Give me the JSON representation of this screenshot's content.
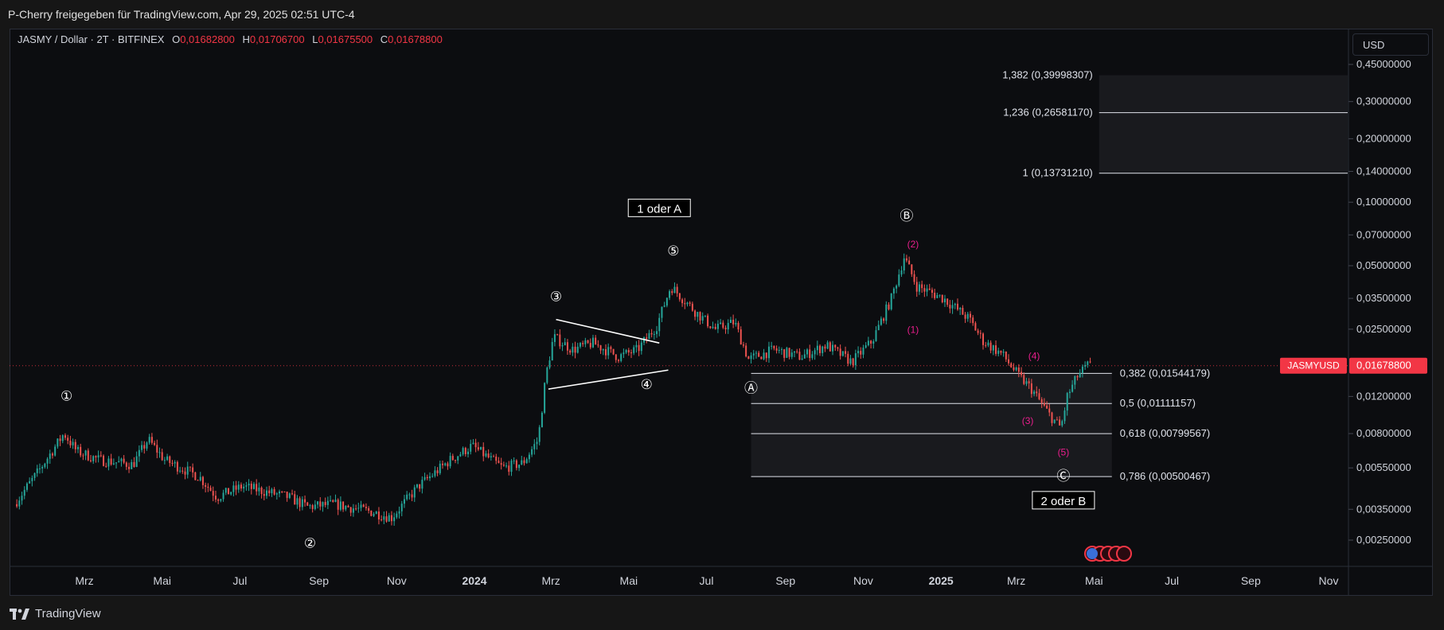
{
  "header": {
    "title": "P-Cherry freigegeben für TradingView.com, Apr 29, 2025 02:51 UTC-4"
  },
  "legend": {
    "symbol": "JASMY / Dollar · 2T · BITFINEX",
    "o_label": "O",
    "o": "0,01682800",
    "h_label": "H",
    "h": "0,01706700",
    "l_label": "L",
    "l": "0,01675500",
    "c_label": "C",
    "c": "0,01678800"
  },
  "currency_button": "USD",
  "footer": {
    "brand": "TradingView"
  },
  "colors": {
    "up": "#26a69a",
    "down": "#ef5350",
    "price_tag": "#f23645",
    "wave_sub": "#e91e8c"
  },
  "chart_data": {
    "type": "candlestick",
    "symbol": "JASMYUSD",
    "exchange": "BITFINEX",
    "timeframe": "2T",
    "y_scale": "log",
    "ylim": [
      0.0018,
      0.6
    ],
    "y_ticks": [
      {
        "value": 0.45,
        "label": "0,45000000"
      },
      {
        "value": 0.3,
        "label": "0,30000000"
      },
      {
        "value": 0.2,
        "label": "0,20000000"
      },
      {
        "value": 0.14,
        "label": "0,14000000"
      },
      {
        "value": 0.1,
        "label": "0,10000000"
      },
      {
        "value": 0.07,
        "label": "0,07000000"
      },
      {
        "value": 0.05,
        "label": "0,05000000"
      },
      {
        "value": 0.035,
        "label": "0,03500000"
      },
      {
        "value": 0.025,
        "label": "0,02500000"
      },
      {
        "value": 0.012,
        "label": "0,01200000"
      },
      {
        "value": 0.008,
        "label": "0,00800000"
      },
      {
        "value": 0.0055,
        "label": "0,00550000"
      },
      {
        "value": 0.0035,
        "label": "0,00350000"
      },
      {
        "value": 0.0025,
        "label": "0,00250000"
      }
    ],
    "x_ticks": [
      {
        "date": "2023-03-01",
        "label": "Mrz",
        "bold": false
      },
      {
        "date": "2023-05-01",
        "label": "Mai",
        "bold": false
      },
      {
        "date": "2023-07-01",
        "label": "Jul",
        "bold": false
      },
      {
        "date": "2023-09-01",
        "label": "Sep",
        "bold": false
      },
      {
        "date": "2023-11-01",
        "label": "Nov",
        "bold": false
      },
      {
        "date": "2024-01-01",
        "label": "2024",
        "bold": true
      },
      {
        "date": "2024-03-01",
        "label": "Mrz",
        "bold": false
      },
      {
        "date": "2024-05-01",
        "label": "Mai",
        "bold": false
      },
      {
        "date": "2024-07-01",
        "label": "Jul",
        "bold": false
      },
      {
        "date": "2024-09-01",
        "label": "Sep",
        "bold": false
      },
      {
        "date": "2024-11-01",
        "label": "Nov",
        "bold": false
      },
      {
        "date": "2025-01-01",
        "label": "2025",
        "bold": true
      },
      {
        "date": "2025-03-01",
        "label": "Mrz",
        "bold": false
      },
      {
        "date": "2025-05-01",
        "label": "Mai",
        "bold": false
      },
      {
        "date": "2025-07-01",
        "label": "Jul",
        "bold": false
      },
      {
        "date": "2025-09-01",
        "label": "Sep",
        "bold": false
      },
      {
        "date": "2025-11-01",
        "label": "Nov",
        "bold": false
      }
    ],
    "price_path": [
      [
        "2023-01-07",
        0.0037
      ],
      [
        "2023-01-25",
        0.0052
      ],
      [
        "2023-02-15",
        0.008
      ],
      [
        "2023-02-25",
        0.0066
      ],
      [
        "2023-03-15",
        0.006
      ],
      [
        "2023-04-10",
        0.0057
      ],
      [
        "2023-04-22",
        0.0075
      ],
      [
        "2023-05-05",
        0.006
      ],
      [
        "2023-06-01",
        0.005
      ],
      [
        "2023-06-15",
        0.004
      ],
      [
        "2023-07-05",
        0.0045
      ],
      [
        "2023-08-10",
        0.004
      ],
      [
        "2023-08-25",
        0.0036
      ],
      [
        "2023-09-15",
        0.0037
      ],
      [
        "2023-10-15",
        0.0034
      ],
      [
        "2023-10-30",
        0.0032
      ],
      [
        "2023-11-20",
        0.0045
      ],
      [
        "2023-12-15",
        0.006
      ],
      [
        "2024-01-01",
        0.007
      ],
      [
        "2024-01-25",
        0.0055
      ],
      [
        "2024-02-10",
        0.0058
      ],
      [
        "2024-02-22",
        0.0075
      ],
      [
        "2024-02-28",
        0.015
      ],
      [
        "2024-03-05",
        0.023
      ],
      [
        "2024-03-20",
        0.02
      ],
      [
        "2024-04-05",
        0.0215
      ],
      [
        "2024-04-25",
        0.0185
      ],
      [
        "2024-05-10",
        0.02
      ],
      [
        "2024-05-25",
        0.026
      ],
      [
        "2024-06-05",
        0.04
      ],
      [
        "2024-06-25",
        0.03
      ],
      [
        "2024-07-10",
        0.025
      ],
      [
        "2024-07-25",
        0.027
      ],
      [
        "2024-08-05",
        0.018
      ],
      [
        "2024-08-25",
        0.02
      ],
      [
        "2024-09-15",
        0.0185
      ],
      [
        "2024-10-05",
        0.021
      ],
      [
        "2024-10-25",
        0.0175
      ],
      [
        "2024-11-10",
        0.022
      ],
      [
        "2024-11-25",
        0.035
      ],
      [
        "2024-12-05",
        0.055
      ],
      [
        "2024-12-15",
        0.04
      ],
      [
        "2025-01-05",
        0.035
      ],
      [
        "2025-01-25",
        0.028
      ],
      [
        "2025-02-05",
        0.022
      ],
      [
        "2025-02-20",
        0.019
      ],
      [
        "2025-03-05",
        0.015
      ],
      [
        "2025-03-15",
        0.013
      ],
      [
        "2025-03-28",
        0.01
      ],
      [
        "2025-04-07",
        0.0085
      ],
      [
        "2025-04-12",
        0.012
      ],
      [
        "2025-04-20",
        0.015
      ],
      [
        "2025-04-28",
        0.0168
      ]
    ],
    "last_price": {
      "value": 0.016788,
      "label": "0,01678800",
      "symbol_label": "JASMYUSD"
    },
    "fib_levels": [
      {
        "ratio": "1,382",
        "value": 0.39998307,
        "label": "1,382 (0,39998307)"
      },
      {
        "ratio": "1,236",
        "value": 0.2658117,
        "label": "1,236 (0,26581170)"
      },
      {
        "ratio": "1",
        "value": 0.1373121,
        "label": "1 (0,13731210)"
      },
      {
        "ratio": "0,382",
        "value": 0.01544179,
        "label": "0,382 (0,01544179)"
      },
      {
        "ratio": "0,5",
        "value": 0.01111157,
        "label": "0,5 (0,01111157)"
      },
      {
        "ratio": "0,618",
        "value": 0.00799567,
        "label": "0,618 (0,00799567)"
      },
      {
        "ratio": "0,786",
        "value": 0.00500467,
        "label": "0,786 (0,00500467)"
      }
    ],
    "wave_labels": [
      {
        "text": "①",
        "date": "2023-02-15",
        "price": 0.0115
      },
      {
        "text": "②",
        "date": "2023-08-25",
        "price": 0.0023
      },
      {
        "text": "③",
        "date": "2024-03-05",
        "price": 0.034
      },
      {
        "text": "④",
        "date": "2024-05-15",
        "price": 0.013
      },
      {
        "text": "⑤",
        "date": "2024-06-05",
        "price": 0.056
      },
      {
        "text": "Ⓐ",
        "date": "2024-08-05",
        "price": 0.0125
      },
      {
        "text": "Ⓑ",
        "date": "2024-12-05",
        "price": 0.082
      },
      {
        "text": "Ⓒ",
        "date": "2025-04-07",
        "price": 0.0048
      }
    ],
    "sub_wave_labels": [
      {
        "text": "(1)",
        "date": "2024-12-10",
        "price": 0.024
      },
      {
        "text": "(2)",
        "date": "2024-12-10",
        "price": 0.061
      },
      {
        "text": "(3)",
        "date": "2025-03-10",
        "price": 0.0089
      },
      {
        "text": "(4)",
        "date": "2025-03-15",
        "price": 0.018
      },
      {
        "text": "(5)",
        "date": "2025-04-07",
        "price": 0.0063
      }
    ],
    "boxed_labels": [
      {
        "text": "1 oder A",
        "date": "2024-05-25",
        "price": 0.09
      },
      {
        "text": "2 oder B",
        "date": "2025-04-07",
        "price": 0.0037
      }
    ]
  }
}
